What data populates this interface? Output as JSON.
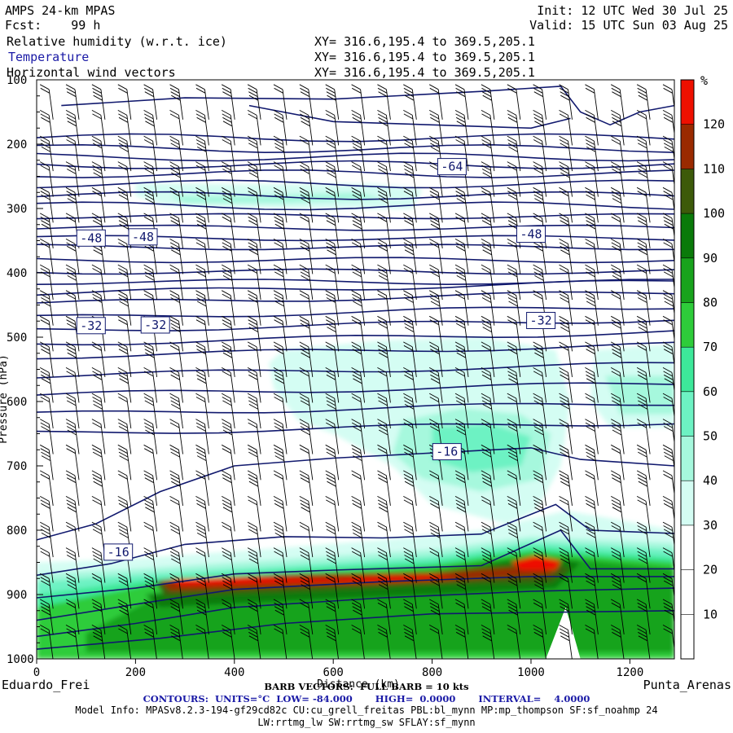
{
  "header": {
    "model": "AMPS 24-km MPAS",
    "fcst": "Fcst:    99 h",
    "init": "Init: 12 UTC Wed 30 Jul 25",
    "valid": "Valid: 15 UTC Sun 03 Aug 25",
    "fields": [
      {
        "name": "Relative humidity (w.r.t. ice)",
        "xy": "XY= 316.6,195.4 to 369.5,205.1"
      },
      {
        "name": "Temperature",
        "xy": "XY= 316.6,195.4 to 369.5,205.1"
      },
      {
        "name": "Horizontal wind vectors",
        "xy": "XY= 316.6,195.4 to 369.5,205.1"
      }
    ]
  },
  "footer": {
    "barb": "BARB VECTORS:  FULL BARB = 10 kts",
    "contours": "CONTOURS:  UNITS=°C  LOW= -84.000       HIGH=  0.0000       INTERVAL=    4.0000",
    "model_info": "Model Info: MPASv8.2.3-194-gf29cd82c CU:cu_grell_freitas PBL:bl_mynn MP:mp_thompson SF:sf_noahmp 24",
    "model_info2": "LW:rrtmg_lw SW:rrtmg_sw SFLAY:sf_mynn"
  },
  "chart_data": {
    "type": "heatmap",
    "title": "Relative humidity (w.r.t. ice)",
    "xlabel": "Distance (km)",
    "ylabel": "Pressure (hPa)",
    "x_ticks": [
      0,
      200,
      400,
      600,
      800,
      1000,
      1200
    ],
    "y_ticks": [
      100,
      200,
      300,
      400,
      500,
      600,
      700,
      800,
      900,
      1000
    ],
    "xlim": [
      0,
      1290
    ],
    "ylim": [
      1000,
      100
    ],
    "endpoints": {
      "left": "Eduardo_Frei",
      "right": "Punta_Arenas"
    },
    "colorbar": {
      "unit": "%",
      "ticks": [
        10,
        20,
        30,
        40,
        50,
        60,
        70,
        80,
        90,
        100,
        110,
        120
      ],
      "colors": [
        "#ffffff",
        "#ffffff",
        "#ffffff",
        "#d4fdf3",
        "#a6f8dd",
        "#6df2c3",
        "#3de89a",
        "#2ecc3a",
        "#18a31c",
        "#0a7a0a",
        "#3d5a0a",
        "#9a2a00",
        "#ee1000"
      ]
    },
    "temperature_labels": [
      {
        "text": "-64",
        "x": 840,
        "p": 235
      },
      {
        "text": "-48",
        "x": 110,
        "p": 346
      },
      {
        "text": "-48",
        "x": 215,
        "p": 344
      },
      {
        "text": "-48",
        "x": 1000,
        "p": 340
      },
      {
        "text": "-32",
        "x": 110,
        "p": 482
      },
      {
        "text": "-32",
        "x": 240,
        "p": 481
      },
      {
        "text": "-32",
        "x": 1020,
        "p": 474
      },
      {
        "text": "-16",
        "x": 830,
        "p": 678
      },
      {
        "text": "-16",
        "x": 165,
        "p": 834
      }
    ],
    "temperature_units": "°C",
    "barb_note": "FULL BARB = 10 kts"
  }
}
